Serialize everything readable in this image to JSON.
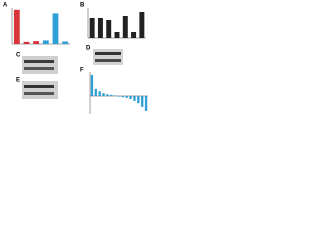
{
  "panel_labels": [
    "A",
    "B",
    "C",
    "D",
    "E",
    "F"
  ],
  "chart_data": [
    {
      "type": "bar",
      "categories": [
        null,
        null,
        null,
        null,
        null,
        null
      ],
      "ylim": [
        0,
        10
      ],
      "series": [
        {
          "color": "#d9343a",
          "values": [
            9.5,
            0.6,
            0.8,
            null,
            null,
            null
          ]
        },
        {
          "color": "#2f9fd8",
          "values": [
            null,
            null,
            null,
            1,
            8.5,
            0.7
          ]
        }
      ]
    },
    {
      "type": "bar",
      "categories": [
        null,
        null,
        null,
        null,
        null,
        null,
        null
      ],
      "ylim": [
        0,
        1.5
      ],
      "series": [
        {
          "color": "#222222",
          "values": [
            1.0,
            1.0,
            0.9,
            0.3,
            1.1,
            0.3,
            1.3
          ]
        }
      ]
    },
    {
      "type": "bar",
      "categories": [
        null,
        null,
        null,
        null,
        null,
        null,
        null,
        null,
        null,
        null,
        null,
        null,
        null,
        null,
        null
      ],
      "ylim": [
        -3,
        4
      ],
      "series": [
        {
          "color": "#2f9fd8",
          "values": [
            3.5,
            1.2,
            0.8,
            0.5,
            0.3,
            0.2,
            0.1,
            -0.1,
            -0.2,
            -0.3,
            -0.5,
            -0.8,
            -1.2,
            -1.8,
            -2.5
          ]
        }
      ]
    }
  ]
}
